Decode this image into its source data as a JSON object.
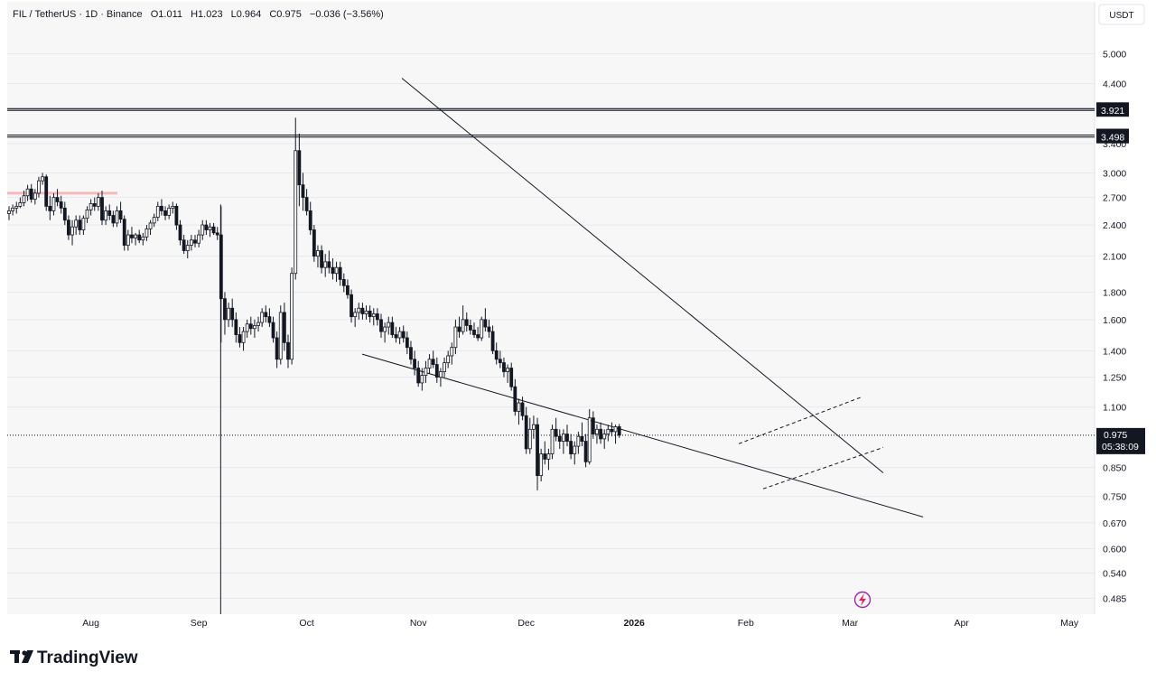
{
  "header": {
    "symbol": "FIL / TetherUS · 1D · Binance",
    "open_label": "O",
    "open": "1.011",
    "high_label": "H",
    "high": "1.023",
    "low_label": "L",
    "low": "0.964",
    "close_label": "C",
    "close": "0.975",
    "change": "−0.036 (−3.56%)"
  },
  "currency_button": "USDT",
  "brand": "TradingView",
  "last_price": {
    "price": "0.975",
    "countdown": "05:38:09"
  },
  "colors": {
    "up": "#ffffff",
    "down": "#131722",
    "wick": "#131722",
    "badge": "#131722",
    "grid": "#e7e9ee",
    "background": "#f7f7f7",
    "accent": "#9c27b0"
  },
  "chart_data": {
    "type": "candlestick",
    "symbol": "FIL/USDT",
    "interval": "1D",
    "y_scale": "log",
    "ylim": [
      0.46,
      6.1
    ],
    "y_ticks": [
      "5.000",
      "4.400",
      "3.950",
      "3.921",
      "3.528",
      "3.498",
      "3.400",
      "3.000",
      "2.700",
      "2.400",
      "2.100",
      "1.800",
      "1.600",
      "1.400",
      "1.250",
      "1.100",
      "0.975",
      "0.850",
      "0.750",
      "0.670",
      "0.600",
      "0.540",
      "0.485"
    ],
    "x_ticks": [
      {
        "label": "Aug",
        "bold": false
      },
      {
        "label": "Sep",
        "bold": false
      },
      {
        "label": "Oct",
        "bold": false
      },
      {
        "label": "Nov",
        "bold": false
      },
      {
        "label": "Dec",
        "bold": false
      },
      {
        "label": "2026",
        "bold": true
      },
      {
        "label": "Feb",
        "bold": false
      },
      {
        "label": "Mar",
        "bold": false
      },
      {
        "label": "Apr",
        "bold": false
      },
      {
        "label": "May",
        "bold": false
      }
    ],
    "horizontal_levels": [
      3.95,
      3.921,
      3.528,
      3.498
    ],
    "current_price": 0.975,
    "candles": [
      [
        2.52,
        2.6,
        2.45,
        2.55
      ],
      [
        2.55,
        2.62,
        2.5,
        2.58
      ],
      [
        2.58,
        2.65,
        2.52,
        2.6
      ],
      [
        2.6,
        2.7,
        2.58,
        2.64
      ],
      [
        2.64,
        2.78,
        2.6,
        2.72
      ],
      [
        2.72,
        2.85,
        2.66,
        2.8
      ],
      [
        2.8,
        2.86,
        2.64,
        2.68
      ],
      [
        2.68,
        2.8,
        2.62,
        2.75
      ],
      [
        2.75,
        2.95,
        2.7,
        2.9
      ],
      [
        2.9,
        3.0,
        2.85,
        2.95
      ],
      [
        2.95,
        2.98,
        2.55,
        2.6
      ],
      [
        2.6,
        2.72,
        2.45,
        2.55
      ],
      [
        2.55,
        2.75,
        2.5,
        2.7
      ],
      [
        2.7,
        2.8,
        2.6,
        2.65
      ],
      [
        2.65,
        2.72,
        2.52,
        2.58
      ],
      [
        2.58,
        2.65,
        2.4,
        2.45
      ],
      [
        2.45,
        2.5,
        2.25,
        2.3
      ],
      [
        2.3,
        2.45,
        2.2,
        2.38
      ],
      [
        2.38,
        2.5,
        2.3,
        2.45
      ],
      [
        2.45,
        2.5,
        2.3,
        2.35
      ],
      [
        2.35,
        2.5,
        2.3,
        2.47
      ],
      [
        2.47,
        2.6,
        2.42,
        2.56
      ],
      [
        2.56,
        2.68,
        2.5,
        2.63
      ],
      [
        2.63,
        2.7,
        2.55,
        2.6
      ],
      [
        2.6,
        2.75,
        2.55,
        2.7
      ],
      [
        2.7,
        2.78,
        2.4,
        2.45
      ],
      [
        2.45,
        2.6,
        2.4,
        2.55
      ],
      [
        2.55,
        2.62,
        2.45,
        2.5
      ],
      [
        2.5,
        2.55,
        2.38,
        2.42
      ],
      [
        2.42,
        2.6,
        2.38,
        2.55
      ],
      [
        2.55,
        2.65,
        2.42,
        2.46
      ],
      [
        2.46,
        2.5,
        2.15,
        2.2
      ],
      [
        2.2,
        2.35,
        2.15,
        2.3
      ],
      [
        2.3,
        2.38,
        2.22,
        2.27
      ],
      [
        2.27,
        2.32,
        2.2,
        2.3
      ],
      [
        2.3,
        2.35,
        2.22,
        2.25
      ],
      [
        2.25,
        2.32,
        2.2,
        2.28
      ],
      [
        2.28,
        2.4,
        2.24,
        2.36
      ],
      [
        2.36,
        2.45,
        2.3,
        2.42
      ],
      [
        2.42,
        2.52,
        2.38,
        2.48
      ],
      [
        2.48,
        2.65,
        2.44,
        2.6
      ],
      [
        2.6,
        2.68,
        2.5,
        2.55
      ],
      [
        2.55,
        2.6,
        2.45,
        2.5
      ],
      [
        2.5,
        2.62,
        2.46,
        2.58
      ],
      [
        2.58,
        2.65,
        2.52,
        2.6
      ],
      [
        2.6,
        2.63,
        2.35,
        2.4
      ],
      [
        2.4,
        2.45,
        2.2,
        2.25
      ],
      [
        2.25,
        2.3,
        2.12,
        2.15
      ],
      [
        2.15,
        2.25,
        2.08,
        2.2
      ],
      [
        2.2,
        2.3,
        2.15,
        2.25
      ],
      [
        2.25,
        2.3,
        2.18,
        2.22
      ],
      [
        2.22,
        2.35,
        2.18,
        2.3
      ],
      [
        2.3,
        2.45,
        2.25,
        2.4
      ],
      [
        2.4,
        2.45,
        2.3,
        2.35
      ],
      [
        2.35,
        2.42,
        2.28,
        2.38
      ],
      [
        2.38,
        2.42,
        2.3,
        2.32
      ],
      [
        2.32,
        2.38,
        2.25,
        2.3
      ],
      [
        2.3,
        2.6,
        1.45,
        1.75
      ],
      [
        1.75,
        1.8,
        1.5,
        1.6
      ],
      [
        1.6,
        1.72,
        1.55,
        1.68
      ],
      [
        1.68,
        1.75,
        1.55,
        1.6
      ],
      [
        1.6,
        1.65,
        1.45,
        1.5
      ],
      [
        1.5,
        1.55,
        1.42,
        1.45
      ],
      [
        1.45,
        1.55,
        1.4,
        1.52
      ],
      [
        1.52,
        1.6,
        1.48,
        1.57
      ],
      [
        1.57,
        1.62,
        1.5,
        1.54
      ],
      [
        1.54,
        1.6,
        1.48,
        1.56
      ],
      [
        1.56,
        1.62,
        1.52,
        1.58
      ],
      [
        1.58,
        1.68,
        1.55,
        1.65
      ],
      [
        1.65,
        1.7,
        1.58,
        1.62
      ],
      [
        1.62,
        1.68,
        1.55,
        1.58
      ],
      [
        1.58,
        1.62,
        1.45,
        1.48
      ],
      [
        1.48,
        1.52,
        1.3,
        1.35
      ],
      [
        1.35,
        1.7,
        1.32,
        1.65
      ],
      [
        1.65,
        1.72,
        1.4,
        1.45
      ],
      [
        1.45,
        1.5,
        1.3,
        1.35
      ],
      [
        1.35,
        2.0,
        1.32,
        1.95
      ],
      [
        1.95,
        3.8,
        1.9,
        3.3
      ],
      [
        3.3,
        3.55,
        2.6,
        2.85
      ],
      [
        2.85,
        3.0,
        2.55,
        2.7
      ],
      [
        2.7,
        2.8,
        2.5,
        2.55
      ],
      [
        2.55,
        2.65,
        2.3,
        2.35
      ],
      [
        2.35,
        2.4,
        2.05,
        2.1
      ],
      [
        2.1,
        2.2,
        2.0,
        2.15
      ],
      [
        2.15,
        2.2,
        1.95,
        2.0
      ],
      [
        2.0,
        2.12,
        1.92,
        2.05
      ],
      [
        2.05,
        2.15,
        1.95,
        2.0
      ],
      [
        2.0,
        2.08,
        1.9,
        1.95
      ],
      [
        1.95,
        2.05,
        1.88,
        2.0
      ],
      [
        2.0,
        2.05,
        1.85,
        1.9
      ],
      [
        1.9,
        1.95,
        1.8,
        1.85
      ],
      [
        1.85,
        1.9,
        1.75,
        1.78
      ],
      [
        1.78,
        1.82,
        1.58,
        1.62
      ],
      [
        1.62,
        1.68,
        1.55,
        1.65
      ],
      [
        1.65,
        1.72,
        1.6,
        1.68
      ],
      [
        1.68,
        1.72,
        1.6,
        1.64
      ],
      [
        1.64,
        1.7,
        1.6,
        1.66
      ],
      [
        1.66,
        1.7,
        1.58,
        1.62
      ],
      [
        1.62,
        1.68,
        1.56,
        1.64
      ],
      [
        1.64,
        1.68,
        1.56,
        1.6
      ],
      [
        1.6,
        1.64,
        1.48,
        1.52
      ],
      [
        1.52,
        1.58,
        1.45,
        1.55
      ],
      [
        1.55,
        1.62,
        1.5,
        1.58
      ],
      [
        1.58,
        1.62,
        1.48,
        1.5
      ],
      [
        1.5,
        1.55,
        1.45,
        1.48
      ],
      [
        1.48,
        1.55,
        1.44,
        1.52
      ],
      [
        1.52,
        1.56,
        1.45,
        1.48
      ],
      [
        1.48,
        1.52,
        1.38,
        1.42
      ],
      [
        1.42,
        1.46,
        1.32,
        1.35
      ],
      [
        1.35,
        1.4,
        1.26,
        1.3
      ],
      [
        1.3,
        1.34,
        1.2,
        1.22
      ],
      [
        1.22,
        1.3,
        1.18,
        1.26
      ],
      [
        1.26,
        1.34,
        1.22,
        1.3
      ],
      [
        1.3,
        1.38,
        1.27,
        1.35
      ],
      [
        1.35,
        1.4,
        1.3,
        1.32
      ],
      [
        1.32,
        1.36,
        1.22,
        1.25
      ],
      [
        1.25,
        1.3,
        1.2,
        1.28
      ],
      [
        1.28,
        1.36,
        1.25,
        1.33
      ],
      [
        1.33,
        1.4,
        1.3,
        1.37
      ],
      [
        1.37,
        1.45,
        1.32,
        1.42
      ],
      [
        1.42,
        1.6,
        1.38,
        1.55
      ],
      [
        1.55,
        1.62,
        1.48,
        1.52
      ],
      [
        1.52,
        1.7,
        1.5,
        1.6
      ],
      [
        1.6,
        1.65,
        1.52,
        1.56
      ],
      [
        1.56,
        1.6,
        1.5,
        1.53
      ],
      [
        1.53,
        1.58,
        1.48,
        1.5
      ],
      [
        1.5,
        1.55,
        1.46,
        1.48
      ],
      [
        1.48,
        1.62,
        1.46,
        1.6
      ],
      [
        1.6,
        1.68,
        1.52,
        1.55
      ],
      [
        1.55,
        1.6,
        1.48,
        1.52
      ],
      [
        1.52,
        1.56,
        1.38,
        1.4
      ],
      [
        1.4,
        1.45,
        1.32,
        1.35
      ],
      [
        1.35,
        1.4,
        1.3,
        1.33
      ],
      [
        1.33,
        1.36,
        1.25,
        1.28
      ],
      [
        1.28,
        1.32,
        1.22,
        1.3
      ],
      [
        1.3,
        1.33,
        1.18,
        1.2
      ],
      [
        1.2,
        1.24,
        1.06,
        1.08
      ],
      [
        1.08,
        1.14,
        1.02,
        1.12
      ],
      [
        1.12,
        1.15,
        1.04,
        1.06
      ],
      [
        1.06,
        1.1,
        0.9,
        0.92
      ],
      [
        0.92,
        1.05,
        0.9,
        1.0
      ],
      [
        1.0,
        1.06,
        0.96,
        1.02
      ],
      [
        1.02,
        1.05,
        0.77,
        0.82
      ],
      [
        0.82,
        0.92,
        0.8,
        0.9
      ],
      [
        0.9,
        0.95,
        0.86,
        0.88
      ],
      [
        0.88,
        0.92,
        0.84,
        0.9
      ],
      [
        0.9,
        1.02,
        0.88,
        1.0
      ],
      [
        1.0,
        1.05,
        0.95,
        0.97
      ],
      [
        0.97,
        1.0,
        0.92,
        0.95
      ],
      [
        0.95,
        1.0,
        0.9,
        0.98
      ],
      [
        0.98,
        1.02,
        0.93,
        0.95
      ],
      [
        0.95,
        0.98,
        0.88,
        0.9
      ],
      [
        0.9,
        0.95,
        0.86,
        0.93
      ],
      [
        0.93,
        0.99,
        0.9,
        0.97
      ],
      [
        0.97,
        1.03,
        0.93,
        0.95
      ],
      [
        0.95,
        0.98,
        0.85,
        0.87
      ],
      [
        0.87,
        1.09,
        0.86,
        1.05
      ],
      [
        1.05,
        1.08,
        0.96,
        0.98
      ],
      [
        0.98,
        1.02,
        0.94,
        1.0
      ],
      [
        1.0,
        1.03,
        0.94,
        0.96
      ],
      [
        0.96,
        1.0,
        0.92,
        0.98
      ],
      [
        0.98,
        1.02,
        0.95,
        1.0
      ],
      [
        1.0,
        1.03,
        0.97,
        0.99
      ],
      [
        0.99,
        1.02,
        0.94,
        1.011
      ],
      [
        1.011,
        1.023,
        0.964,
        0.975
      ]
    ]
  }
}
